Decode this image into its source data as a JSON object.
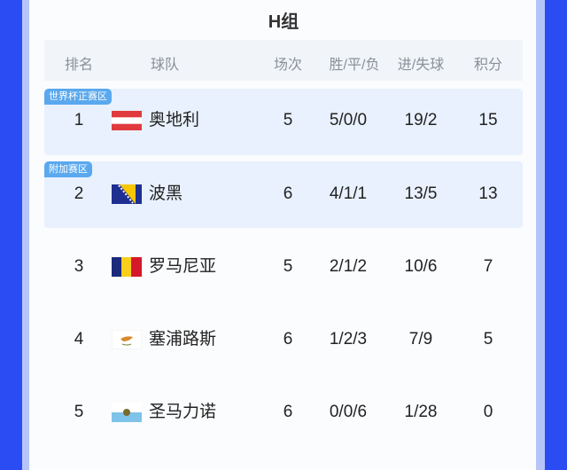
{
  "title": "H组",
  "headers": {
    "rank": "排名",
    "team": "球队",
    "played": "场次",
    "wdl": "胜/平/负",
    "goals": "进/失球",
    "points": "积分"
  },
  "zones": {
    "qualify": "世界杯正赛区",
    "playoff": "附加赛区"
  },
  "colors": {
    "background": "#2a4cf2",
    "zone_tag": "#5aa8ee",
    "zone_band": "#e8f1fd"
  },
  "rows": [
    {
      "rank": "1",
      "flag": "austria-flag",
      "team": "奥地利",
      "played": "5",
      "wdl": "5/0/0",
      "goals": "19/2",
      "points": "15"
    },
    {
      "rank": "2",
      "flag": "bosnia-flag",
      "team": "波黑",
      "played": "6",
      "wdl": "4/1/1",
      "goals": "13/5",
      "points": "13"
    },
    {
      "rank": "3",
      "flag": "romania-flag",
      "team": "罗马尼亚",
      "played": "5",
      "wdl": "2/1/2",
      "goals": "10/6",
      "points": "7"
    },
    {
      "rank": "4",
      "flag": "cyprus-flag",
      "team": "塞浦路斯",
      "played": "6",
      "wdl": "1/2/3",
      "goals": "7/9",
      "points": "5"
    },
    {
      "rank": "5",
      "flag": "san-marino-flag",
      "team": "圣马力诺",
      "played": "6",
      "wdl": "0/0/6",
      "goals": "1/28",
      "points": "0"
    }
  ]
}
